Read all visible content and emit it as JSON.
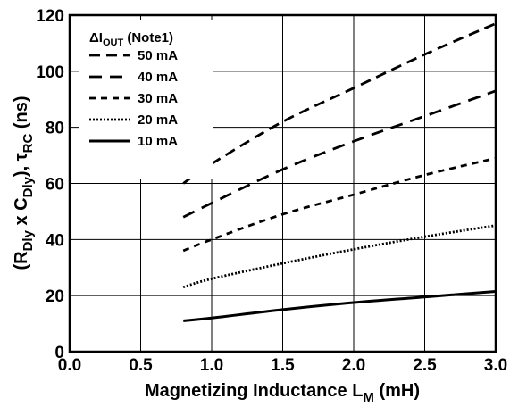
{
  "chart_data": {
    "type": "line",
    "xlabel": {
      "main": "Magnetizing Inductance L",
      "sub": "M",
      "suffix": " (mH)"
    },
    "ylabel": {
      "part1": "(R",
      "sub1": "Dly",
      "part2": " x C",
      "sub2": "Dly",
      "part3": "), τ",
      "sub3": "RC",
      "part4": " (ns)"
    },
    "xlim": [
      0,
      3
    ],
    "ylim": [
      0,
      120
    ],
    "xticks": [
      "0.0",
      "0.5",
      "1.0",
      "1.5",
      "2.0",
      "2.5",
      "3.0"
    ],
    "yticks": [
      "0",
      "20",
      "40",
      "60",
      "80",
      "100",
      "120"
    ],
    "grid": true,
    "legend_position": "top-left",
    "legend_title": {
      "prefix": "ΔI",
      "sub": "OUT",
      "suffix": " (Note1)"
    },
    "series": [
      {
        "name": "50 mA",
        "dash": "long-dash",
        "x": [
          0.8,
          1.0,
          1.5,
          2.0,
          2.5,
          3.0
        ],
        "y": [
          60,
          67,
          82,
          94,
          106,
          117
        ]
      },
      {
        "name": "40 mA",
        "dash": "dash",
        "x": [
          0.8,
          1.0,
          1.5,
          2.0,
          2.5,
          3.0
        ],
        "y": [
          48,
          53,
          65,
          75,
          84,
          93
        ]
      },
      {
        "name": "30 mA",
        "dash": "short-dash",
        "x": [
          0.8,
          1.0,
          1.5,
          2.0,
          2.5,
          3.0
        ],
        "y": [
          36,
          40,
          49,
          56,
          63,
          69
        ]
      },
      {
        "name": "20 mA",
        "dash": "dotted",
        "x": [
          0.8,
          1.0,
          1.5,
          2.0,
          2.5,
          3.0
        ],
        "y": [
          23,
          26,
          31.5,
          36.5,
          41,
          45
        ]
      },
      {
        "name": "10 mA",
        "dash": "solid",
        "x": [
          0.8,
          1.0,
          1.5,
          2.0,
          2.5,
          3.0
        ],
        "y": [
          11,
          12,
          15,
          17.5,
          19.5,
          21.5
        ]
      }
    ]
  }
}
